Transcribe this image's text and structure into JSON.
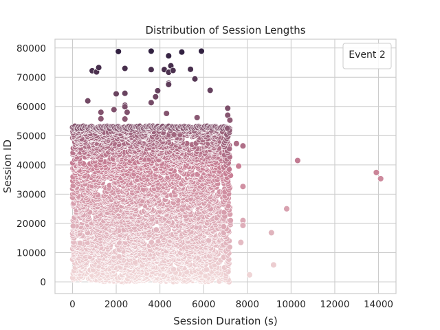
{
  "chart_data": {
    "type": "scatter",
    "title": "Distribution of Session Lengths",
    "xlabel": "Session Duration (s)",
    "ylabel": "Session ID",
    "xlim": [
      -800,
      14800
    ],
    "ylim": [
      -4000,
      83000
    ],
    "xticks": [
      0,
      2000,
      4000,
      6000,
      8000,
      10000,
      12000,
      14000
    ],
    "yticks": [
      0,
      10000,
      20000,
      30000,
      40000,
      50000,
      60000,
      70000,
      80000
    ],
    "grid": true,
    "legend": {
      "title": "Event 2",
      "placement": "top-right"
    },
    "color_mapping": "hue by Session ID (light pink = low, dark purple = high)",
    "colors": {
      "low": "#f2dada",
      "mid": "#c87f95",
      "high": "#2d1e3e",
      "grid": "#cccccc",
      "axes": "#cccccc"
    },
    "dense_region": {
      "x_range": [
        0,
        7200
      ],
      "y_range": [
        0,
        53000
      ],
      "note": "tens of thousands of overlapping points"
    },
    "outliers": [
      {
        "x": 2100,
        "y": 78800
      },
      {
        "x": 3600,
        "y": 78900
      },
      {
        "x": 4400,
        "y": 77300
      },
      {
        "x": 5000,
        "y": 78600
      },
      {
        "x": 5900,
        "y": 78900
      },
      {
        "x": 900,
        "y": 72200
      },
      {
        "x": 1100,
        "y": 71800
      },
      {
        "x": 1200,
        "y": 73300
      },
      {
        "x": 2400,
        "y": 73000
      },
      {
        "x": 3600,
        "y": 72600
      },
      {
        "x": 4200,
        "y": 72600
      },
      {
        "x": 4500,
        "y": 73900
      },
      {
        "x": 4400,
        "y": 71700
      },
      {
        "x": 4600,
        "y": 72300
      },
      {
        "x": 5400,
        "y": 72700
      },
      {
        "x": 5600,
        "y": 69400
      },
      {
        "x": 4400,
        "y": 67900
      },
      {
        "x": 4400,
        "y": 67500
      },
      {
        "x": 3900,
        "y": 65400
      },
      {
        "x": 6300,
        "y": 65500
      },
      {
        "x": 2000,
        "y": 64300
      },
      {
        "x": 2400,
        "y": 64500
      },
      {
        "x": 3800,
        "y": 63300
      },
      {
        "x": 700,
        "y": 61900
      },
      {
        "x": 3600,
        "y": 61300
      },
      {
        "x": 2400,
        "y": 60400
      },
      {
        "x": 2400,
        "y": 59900
      },
      {
        "x": 1900,
        "y": 58900
      },
      {
        "x": 1300,
        "y": 58000
      },
      {
        "x": 2500,
        "y": 58000
      },
      {
        "x": 4300,
        "y": 57600
      },
      {
        "x": 5700,
        "y": 56200
      },
      {
        "x": 1300,
        "y": 55800
      },
      {
        "x": 2400,
        "y": 55700
      },
      {
        "x": 7100,
        "y": 59400
      },
      {
        "x": 7100,
        "y": 57000
      },
      {
        "x": 7200,
        "y": 55300
      },
      {
        "x": 7500,
        "y": 47300
      },
      {
        "x": 7800,
        "y": 46500
      },
      {
        "x": 10300,
        "y": 41500
      },
      {
        "x": 7600,
        "y": 39600
      },
      {
        "x": 13900,
        "y": 37400
      },
      {
        "x": 14100,
        "y": 35300
      },
      {
        "x": 7800,
        "y": 32600
      },
      {
        "x": 9800,
        "y": 25000
      },
      {
        "x": 7800,
        "y": 21000
      },
      {
        "x": 7800,
        "y": 19300
      },
      {
        "x": 9100,
        "y": 16800
      },
      {
        "x": 7700,
        "y": 13500
      },
      {
        "x": 9200,
        "y": 5800
      },
      {
        "x": 8100,
        "y": 2400
      }
    ]
  }
}
